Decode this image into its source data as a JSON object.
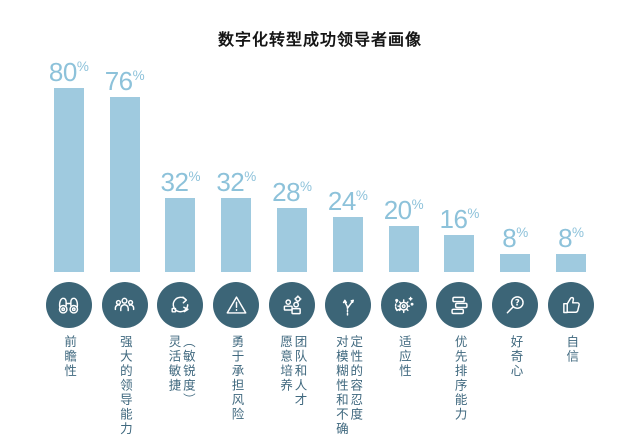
{
  "page": {
    "background": "#ffffff"
  },
  "header": {
    "title": "数字化转型成功领导者画像"
  },
  "colors": {
    "bar_fill": "#9fcadf",
    "value_label": "#8dc2da",
    "icon_circle_bg": "#3c6577",
    "icon_stroke": "#ffffff",
    "category_label": "#40697f",
    "title_color": "#151515"
  },
  "chart_data": {
    "type": "bar",
    "title": "数字化转型成功领导者画像",
    "value_unit": "%",
    "ylim": [
      0,
      100
    ],
    "grid": false,
    "legend": false,
    "categories": [
      "前瞻性",
      "强大的领导能力",
      "灵活敏捷（敏锐度）",
      "勇于承担风险",
      "愿意培养团队和人才",
      "对模糊性和不确定性的容忍度",
      "适应性",
      "优先排序能力",
      "好奇心",
      "自信"
    ],
    "values": [
      80,
      76,
      32,
      32,
      28,
      24,
      20,
      16,
      8,
      8
    ],
    "bars": [
      {
        "label": "前瞻性",
        "label_lines": "前瞻性",
        "value": 80,
        "value_text": "80",
        "icon": "binoculars-icon"
      },
      {
        "label": "强大的领导能力",
        "label_lines": "强大的领导能力",
        "value": 76,
        "value_text": "76",
        "icon": "team-icon"
      },
      {
        "label": "灵活敏捷（敏锐度）",
        "label_lines": "灵活敏捷\n（敏锐度）",
        "value": 32,
        "value_text": "32",
        "icon": "agile-cycle-icon"
      },
      {
        "label": "勇于承担风险",
        "label_lines": "勇于承担风险",
        "value": 32,
        "value_text": "32",
        "icon": "risk-triangle-icon"
      },
      {
        "label": "愿意培养团队和人才",
        "label_lines": "愿意培养\n团队和人才",
        "value": 28,
        "value_text": "28",
        "icon": "talent-development-icon"
      },
      {
        "label": "对模糊性和不确定性的容忍度",
        "label_lines": "对模糊性和不确\n定性的容忍度",
        "value": 24,
        "value_text": "24",
        "icon": "branch-arrows-icon"
      },
      {
        "label": "适应性",
        "label_lines": "适应性",
        "value": 20,
        "value_text": "20",
        "icon": "adapt-gear-icon"
      },
      {
        "label": "优先排序能力",
        "label_lines": "优先排序能力",
        "value": 16,
        "value_text": "16",
        "icon": "priority-stack-icon"
      },
      {
        "label": "好奇心",
        "label_lines": "好奇心",
        "value": 8,
        "value_text": "8",
        "icon": "curiosity-magnifier-icon"
      },
      {
        "label": "自信",
        "label_lines": "自信",
        "value": 8,
        "value_text": "8",
        "icon": "thumbs-up-icon"
      }
    ]
  }
}
